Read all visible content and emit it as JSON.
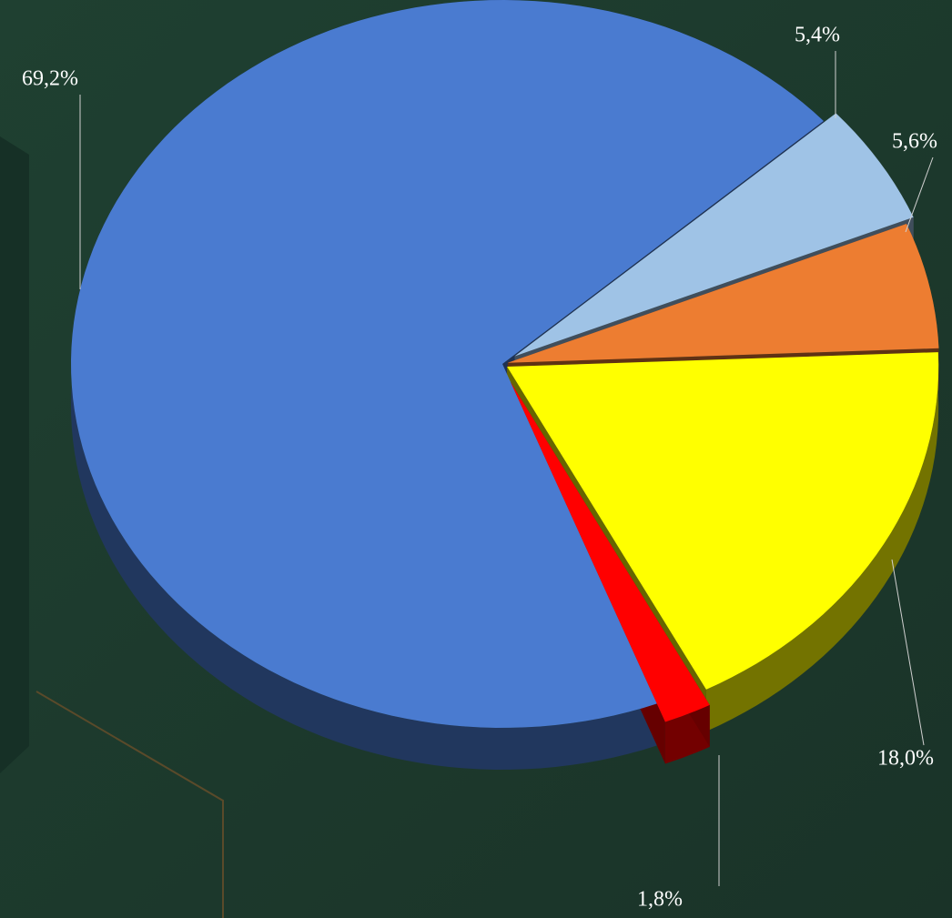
{
  "chart_data": {
    "type": "pie",
    "values": [
      69.2,
      5.4,
      5.6,
      18.0,
      1.8
    ],
    "value_labels": [
      "69,2%",
      "5,4%",
      "5,6%",
      "18,0%",
      "1,8%"
    ],
    "colors": [
      "#4a7bd0",
      "#9fc3e6",
      "#ed7d31",
      "#ffff00",
      "#ff0000"
    ]
  }
}
